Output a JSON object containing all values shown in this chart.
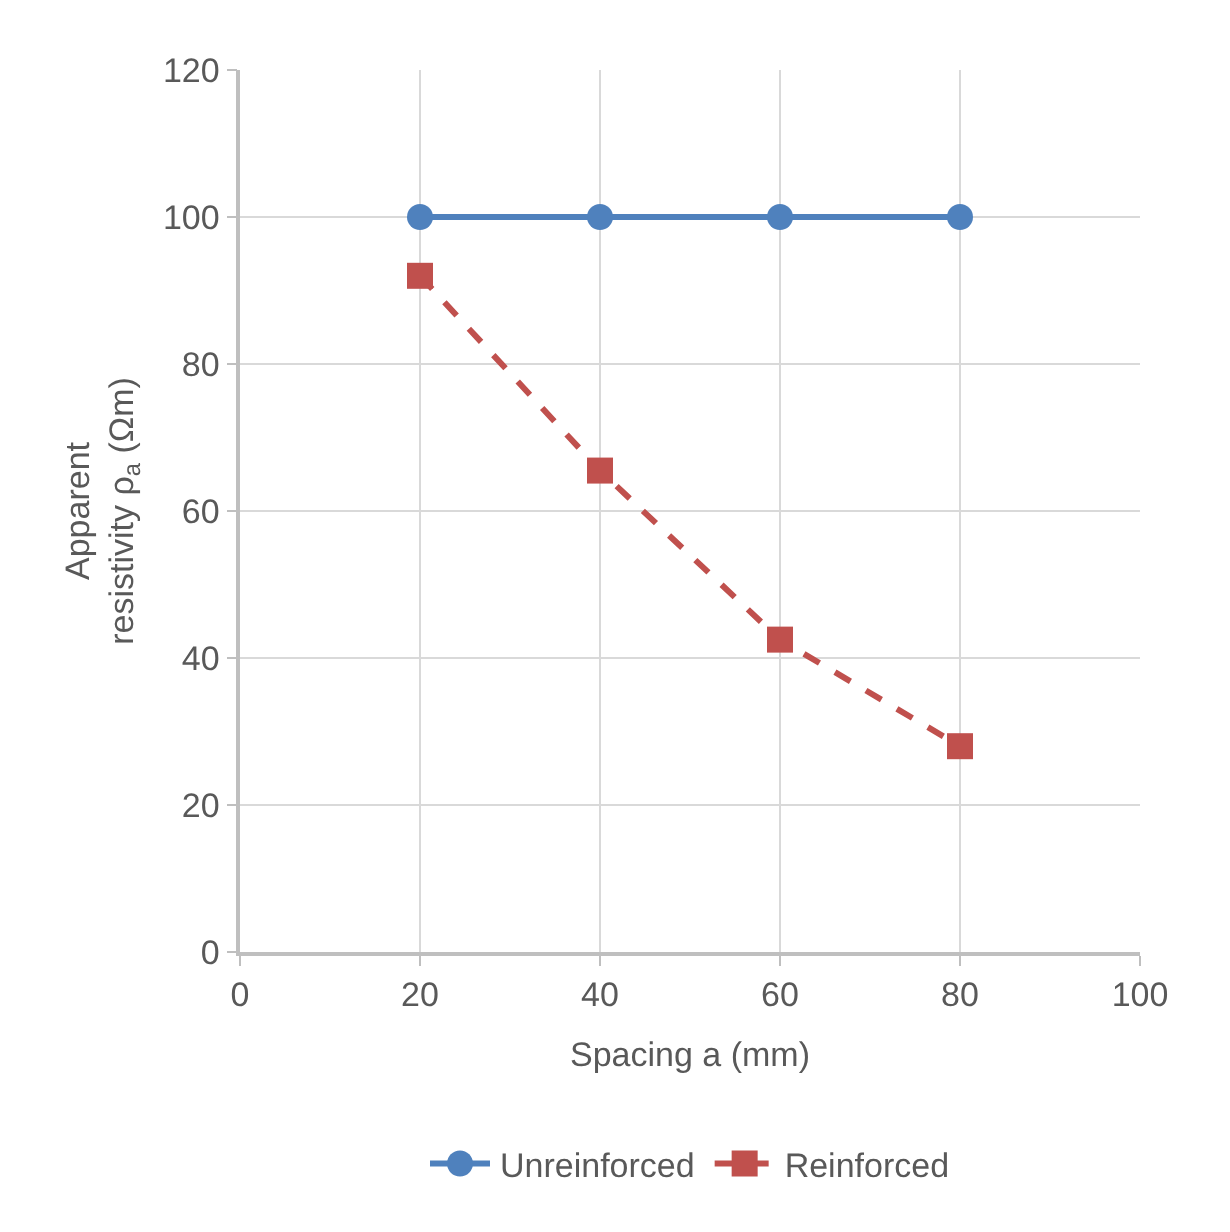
{
  "chart_data": {
    "type": "line",
    "xlabel": "Spacing a (mm)",
    "ylabel": "Apparent\nresistivity ρ$_{a}$ (Ωm)",
    "x": [
      20,
      40,
      60,
      80
    ],
    "series": [
      {
        "name": "Unreinforced",
        "color": "#4f81bd",
        "values": [
          100,
          100,
          100,
          100
        ],
        "marker": "circle",
        "line_style": "solid"
      },
      {
        "name": "Reinforced",
        "color": "#c0504d",
        "values": [
          92,
          65.5,
          42.5,
          28
        ],
        "marker": "square",
        "line_style": "dashed"
      }
    ],
    "xlim": [
      0,
      100
    ],
    "xticks": [
      0,
      20,
      40,
      60,
      80,
      100
    ],
    "ylim": [
      0,
      120
    ],
    "yticks": [
      0,
      20,
      40,
      60,
      80,
      100,
      120
    ],
    "grid": true,
    "legend": "bottom"
  }
}
